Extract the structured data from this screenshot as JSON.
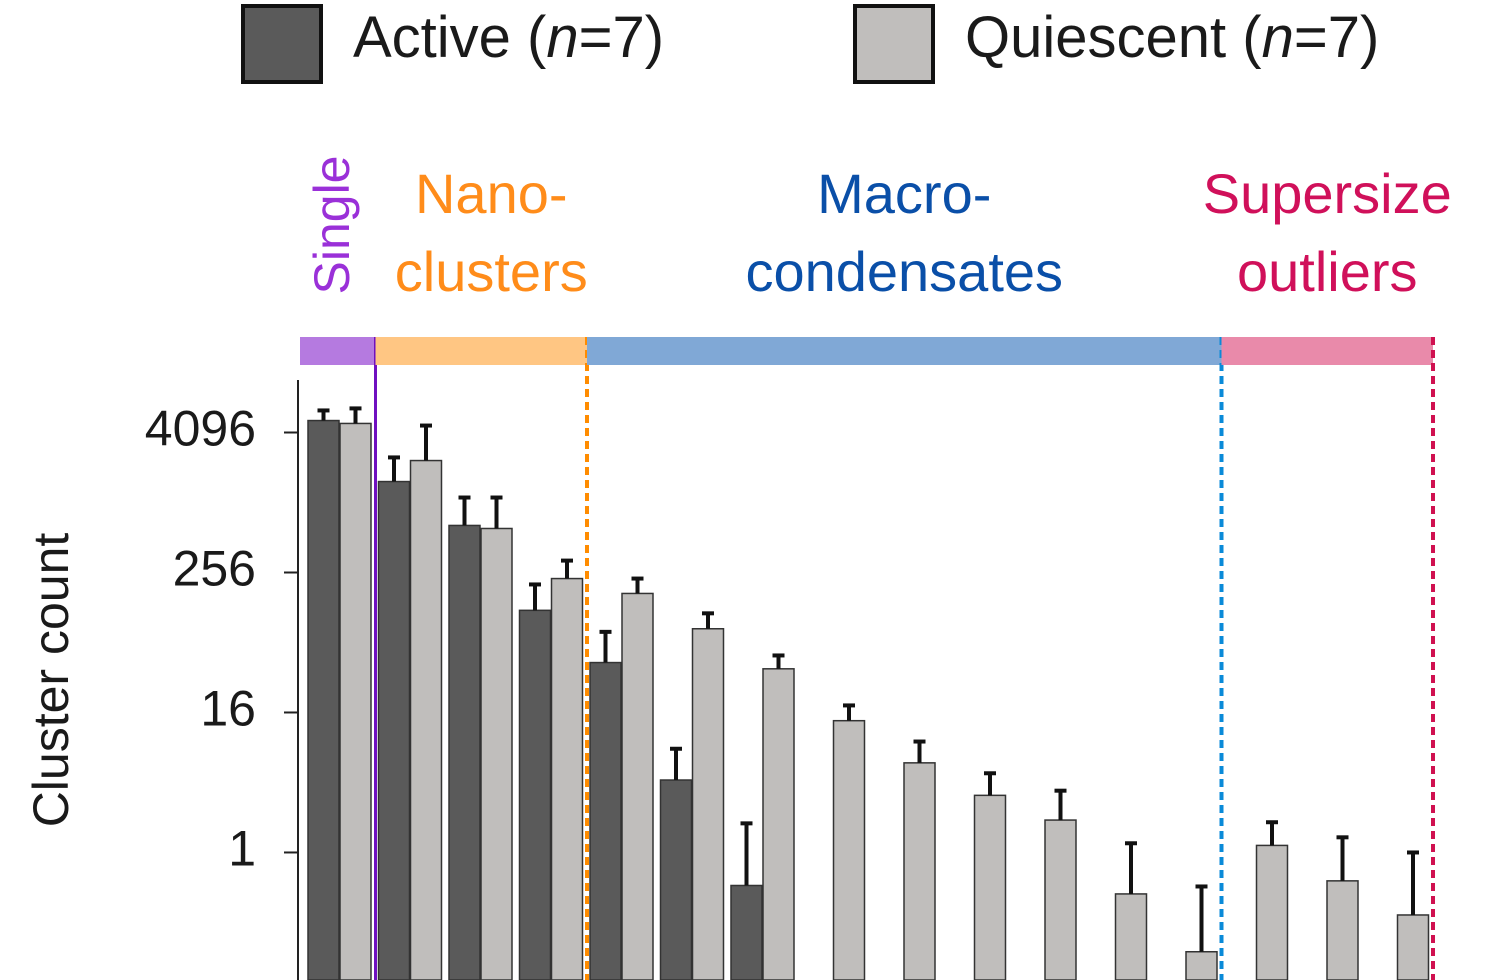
{
  "chart_data": {
    "type": "bar",
    "y_label": "Cluster count",
    "yscale": "log",
    "ylim": [
      0.08,
      11585
    ],
    "yticks": [
      1,
      16,
      256,
      4096
    ],
    "categories": [
      null,
      null,
      null,
      null,
      null,
      null,
      null,
      null,
      null,
      null,
      null,
      null,
      null,
      null,
      null,
      null
    ],
    "series": [
      {
        "name": "Active (n=7)",
        "color": "#5a5a5a",
        "values": [
          5190,
          1550,
          650,
          121,
          43,
          4.2,
          0.52,
          null,
          null,
          null,
          null,
          null,
          null,
          null,
          null,
          null
        ],
        "errors": [
          1150,
          950,
          480,
          81,
          36,
          3.6,
          1.26,
          null,
          null,
          null,
          null,
          null,
          null,
          null,
          null,
          null
        ]
      },
      {
        "name": "Quiescent (n=7)",
        "color": "#c0bebc",
        "values": [
          4900,
          2350,
          612,
          227,
          169,
          84,
          38,
          13.6,
          5.9,
          3.1,
          1.9,
          0.44,
          0.14,
          1.15,
          0.57,
          0.29
        ],
        "errors": [
          1700,
          2350,
          518,
          97,
          58,
          30,
          11.5,
          4.8,
          3.1,
          1.7,
          1.5,
          0.76,
          0.37,
          0.67,
          0.78,
          0.71
        ]
      }
    ],
    "regions": [
      {
        "label": [
          "Single"
        ],
        "first_category": 0,
        "last_category": 0,
        "text_color": "#9a30d8",
        "band_color": "#b57ae0",
        "line_color": "#7010c0",
        "line_style": "solid"
      },
      {
        "label": [
          "Nano-",
          "clusters"
        ],
        "first_category": 1,
        "last_category": 3,
        "text_color": "#ff8c1a",
        "band_color": "#ffc683",
        "line_color": "#ff8c00",
        "line_style": "dashed"
      },
      {
        "label": [
          "Macro-",
          "condensates"
        ],
        "first_category": 4,
        "last_category": 12,
        "text_color": "#0a4fa8",
        "band_color": "#80a8d6",
        "line_color": "#0a8ad8",
        "line_style": "dashed"
      },
      {
        "label": [
          "Supersize",
          "outliers"
        ],
        "first_category": 13,
        "last_category": 15,
        "text_color": "#d0105a",
        "band_color": "#e98aaa",
        "line_color": "#d01050",
        "line_style": "dashed"
      }
    ]
  }
}
